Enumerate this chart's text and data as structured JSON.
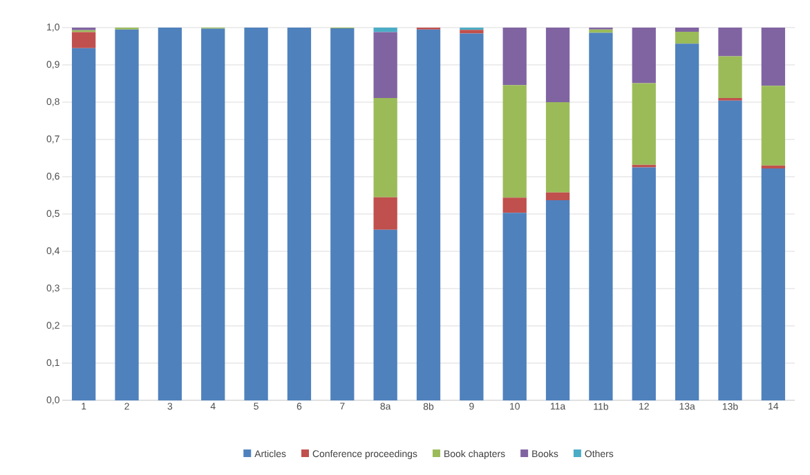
{
  "chart_data": {
    "type": "bar",
    "stacked": true,
    "grid": "y",
    "legend": "bottom",
    "categories": [
      "1",
      "2",
      "3",
      "4",
      "5",
      "6",
      "7",
      "8a",
      "8b",
      "9",
      "10",
      "11a",
      "11b",
      "12",
      "13a",
      "13b",
      "14"
    ],
    "ylim": [
      0,
      1.0
    ],
    "yticks": [
      {
        "value": 0,
        "label": "0,0"
      },
      {
        "value": 0.1,
        "label": "0,1"
      },
      {
        "value": 0.2,
        "label": "0,2"
      },
      {
        "value": 0.3,
        "label": "0,3"
      },
      {
        "value": 0.4,
        "label": "0,4"
      },
      {
        "value": 0.5,
        "label": "0,5"
      },
      {
        "value": 0.6,
        "label": "0,6"
      },
      {
        "value": 0.7,
        "label": "0,7"
      },
      {
        "value": 0.8,
        "label": "0,8"
      },
      {
        "value": 0.9,
        "label": "0,9"
      },
      {
        "value": 1.0,
        "label": "1,0"
      }
    ],
    "series": [
      {
        "name": "Articles",
        "color": "#4f81bd",
        "values": [
          0.945,
          0.995,
          1.0,
          0.997,
          1.0,
          1.0,
          0.998,
          0.458,
          0.995,
          0.984,
          0.503,
          0.537,
          0.986,
          0.625,
          0.957,
          0.804,
          0.622
        ]
      },
      {
        "name": "Conference proceedings",
        "color": "#c0504d",
        "values": [
          0.043,
          null,
          0,
          0,
          0,
          0,
          0,
          0.087,
          0.005,
          0.01,
          0.041,
          0.021,
          0,
          0.007,
          0,
          0.007,
          0.008
        ]
      },
      {
        "name": "Book chapters",
        "color": "#9bbb59",
        "values": [
          0.005,
          0.005,
          0,
          0.003,
          0,
          0,
          0.002,
          0.266,
          0,
          0,
          0.302,
          0.242,
          0.009,
          0.219,
          0.032,
          0.112,
          0.214
        ]
      },
      {
        "name": "Books",
        "color": "#8064a2",
        "values": [
          0.007,
          0,
          0,
          0,
          0,
          0,
          0,
          0.177,
          0,
          0,
          0.154,
          0.2,
          0.005,
          0.149,
          0.011,
          0.077,
          0.156
        ]
      },
      {
        "name": "Others",
        "color": "#4bacc6",
        "values": [
          0,
          null,
          0,
          0,
          0,
          0,
          0,
          0.012,
          0,
          0.006,
          0,
          0,
          0,
          0,
          0,
          0,
          0
        ]
      }
    ]
  }
}
